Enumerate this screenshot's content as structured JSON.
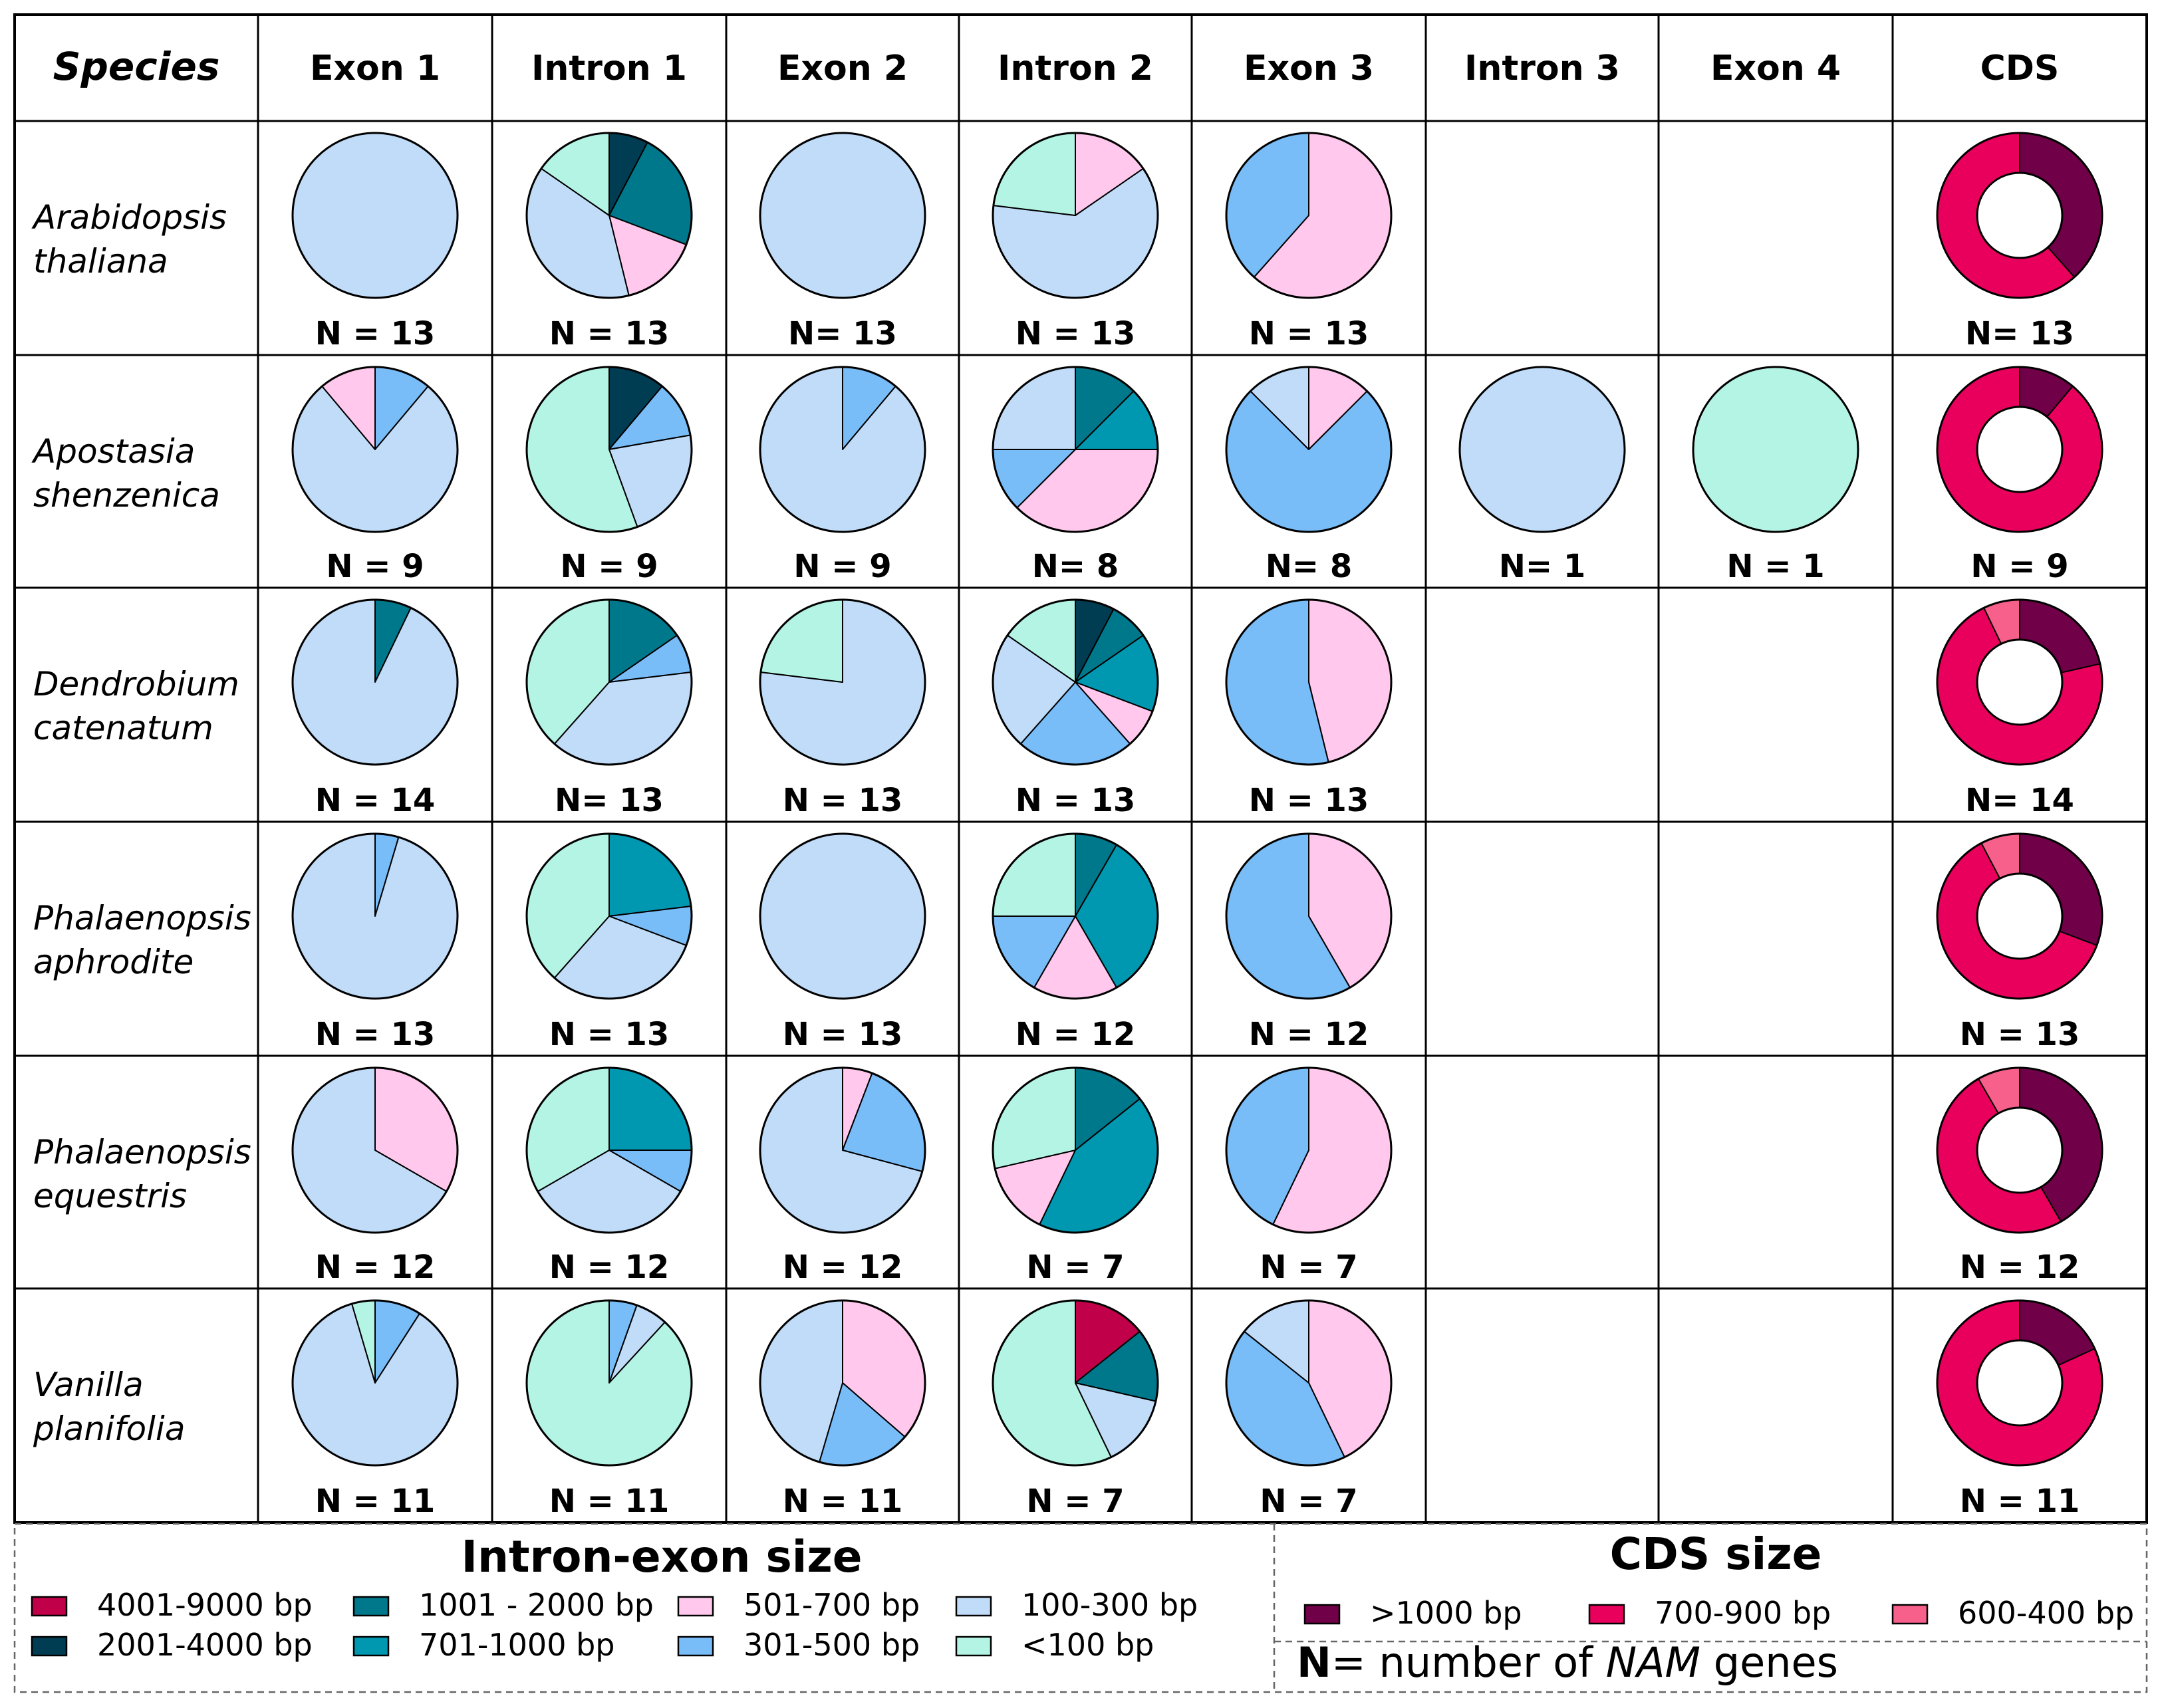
{
  "colors": {
    "4001-9000": "#c00048",
    "2001-4000": "#003c52",
    "1001-2000": "#00788c",
    "701-1000": "#0098b0",
    "501-700": "#ffc8ec",
    "301-500": "#78bcf8",
    "100-300": "#c0dcf8",
    "<100": "#b4f4e4",
    "cds_gt1000": "#700048",
    "cds_700_900": "#e8005c",
    "cds_600_400": "#f8608c"
  },
  "chart_data": {
    "type": "pie",
    "title": "",
    "header": {
      "species": "Species",
      "columns": [
        "Exon 1",
        "Intron 1",
        "Exon 2",
        "Intron 2",
        "Exon 3",
        "Intron 3",
        "Exon 4",
        "CDS"
      ]
    },
    "rows": [
      {
        "species": [
          "Arabidopsis",
          "thaliana"
        ],
        "cells": [
          {
            "n": "N = 13",
            "slices": [
              {
                "c": "100-300",
                "v": 13
              }
            ]
          },
          {
            "n": "N = 13",
            "slices": [
              {
                "c": "2001-4000",
                "v": 1
              },
              {
                "c": "1001-2000",
                "v": 3
              },
              {
                "c": "501-700",
                "v": 2
              },
              {
                "c": "100-300",
                "v": 5
              },
              {
                "c": "<100",
                "v": 2
              }
            ]
          },
          {
            "n": "N= 13",
            "slices": [
              {
                "c": "100-300",
                "v": 13
              }
            ]
          },
          {
            "n": "N = 13",
            "slices": [
              {
                "c": "501-700",
                "v": 2
              },
              {
                "c": "100-300",
                "v": 8
              },
              {
                "c": "<100",
                "v": 3
              }
            ]
          },
          {
            "n": "N = 13",
            "slices": [
              {
                "c": "501-700",
                "v": 8
              },
              {
                "c": "301-500",
                "v": 5
              }
            ]
          },
          null,
          null,
          {
            "n": "N= 13",
            "cds": true,
            "slices": [
              {
                "c": "cds_gt1000",
                "v": 5
              },
              {
                "c": "cds_700_900",
                "v": 8
              }
            ]
          }
        ]
      },
      {
        "species": [
          "Apostasia",
          "shenzenica"
        ],
        "cells": [
          {
            "n": "N = 9",
            "slices": [
              {
                "c": "301-500",
                "v": 1
              },
              {
                "c": "100-300",
                "v": 7
              },
              {
                "c": "501-700",
                "v": 1
              }
            ]
          },
          {
            "n": "N = 9",
            "slices": [
              {
                "c": "2001-4000",
                "v": 1
              },
              {
                "c": "301-500",
                "v": 1
              },
              {
                "c": "100-300",
                "v": 2
              },
              {
                "c": "<100",
                "v": 5
              }
            ]
          },
          {
            "n": "N = 9",
            "slices": [
              {
                "c": "301-500",
                "v": 1
              },
              {
                "c": "100-300",
                "v": 8
              }
            ]
          },
          {
            "n": "N= 8",
            "slices": [
              {
                "c": "1001-2000",
                "v": 1
              },
              {
                "c": "701-1000",
                "v": 1
              },
              {
                "c": "501-700",
                "v": 3
              },
              {
                "c": "301-500",
                "v": 1
              },
              {
                "c": "100-300",
                "v": 2
              }
            ]
          },
          {
            "n": "N= 8",
            "slices": [
              {
                "c": "501-700",
                "v": 1
              },
              {
                "c": "301-500",
                "v": 6
              },
              {
                "c": "100-300",
                "v": 1
              }
            ]
          },
          {
            "n": "N= 1",
            "slices": [
              {
                "c": "100-300",
                "v": 1
              }
            ]
          },
          {
            "n": "N = 1",
            "slices": [
              {
                "c": "<100",
                "v": 1
              }
            ]
          },
          {
            "n": "N = 9",
            "cds": true,
            "slices": [
              {
                "c": "cds_gt1000",
                "v": 1
              },
              {
                "c": "cds_700_900",
                "v": 8
              }
            ]
          }
        ]
      },
      {
        "species": [
          "Dendrobium",
          "catenatum"
        ],
        "cells": [
          {
            "n": "N = 14",
            "slices": [
              {
                "c": "1001-2000",
                "v": 1
              },
              {
                "c": "100-300",
                "v": 13
              }
            ]
          },
          {
            "n": "N= 13",
            "slices": [
              {
                "c": "1001-2000",
                "v": 2
              },
              {
                "c": "301-500",
                "v": 1
              },
              {
                "c": "100-300",
                "v": 5
              },
              {
                "c": "<100",
                "v": 5
              }
            ]
          },
          {
            "n": "N = 13",
            "slices": [
              {
                "c": "100-300",
                "v": 10
              },
              {
                "c": "<100",
                "v": 3
              }
            ]
          },
          {
            "n": "N = 13",
            "slices": [
              {
                "c": "2001-4000",
                "v": 1
              },
              {
                "c": "1001-2000",
                "v": 1
              },
              {
                "c": "701-1000",
                "v": 2
              },
              {
                "c": "501-700",
                "v": 1
              },
              {
                "c": "301-500",
                "v": 3
              },
              {
                "c": "100-300",
                "v": 3
              },
              {
                "c": "<100",
                "v": 2
              }
            ]
          },
          {
            "n": "N = 13",
            "slices": [
              {
                "c": "501-700",
                "v": 6
              },
              {
                "c": "301-500",
                "v": 7
              }
            ]
          },
          null,
          null,
          {
            "n": "N= 14",
            "cds": true,
            "slices": [
              {
                "c": "cds_gt1000",
                "v": 3
              },
              {
                "c": "cds_700_900",
                "v": 10
              },
              {
                "c": "cds_600_400",
                "v": 1
              }
            ]
          }
        ]
      },
      {
        "species": [
          "Phalaenopsis",
          "aphrodite"
        ],
        "cells": [
          {
            "n": "N = 13",
            "slices": [
              {
                "c": "301-500",
                "v": 0.6
              },
              {
                "c": "100-300",
                "v": 12.4
              }
            ]
          },
          {
            "n": "N = 13",
            "slices": [
              {
                "c": "701-1000",
                "v": 3
              },
              {
                "c": "301-500",
                "v": 1
              },
              {
                "c": "100-300",
                "v": 4
              },
              {
                "c": "<100",
                "v": 5
              }
            ]
          },
          {
            "n": "N = 13",
            "slices": [
              {
                "c": "100-300",
                "v": 13
              }
            ]
          },
          {
            "n": "N = 12",
            "slices": [
              {
                "c": "1001-2000",
                "v": 1
              },
              {
                "c": "701-1000",
                "v": 4
              },
              {
                "c": "501-700",
                "v": 2
              },
              {
                "c": "301-500",
                "v": 2
              },
              {
                "c": "<100",
                "v": 3
              }
            ]
          },
          {
            "n": "N = 12",
            "slices": [
              {
                "c": "501-700",
                "v": 5
              },
              {
                "c": "301-500",
                "v": 7
              }
            ]
          },
          null,
          null,
          {
            "n": "N = 13",
            "cds": true,
            "slices": [
              {
                "c": "cds_gt1000",
                "v": 4
              },
              {
                "c": "cds_700_900",
                "v": 8
              },
              {
                "c": "cds_600_400",
                "v": 1
              }
            ]
          }
        ]
      },
      {
        "species": [
          "Phalaenopsis",
          "equestris"
        ],
        "cells": [
          {
            "n": "N = 12",
            "slices": [
              {
                "c": "501-700",
                "v": 4
              },
              {
                "c": "100-300",
                "v": 8
              }
            ]
          },
          {
            "n": "N = 12",
            "slices": [
              {
                "c": "701-1000",
                "v": 3
              },
              {
                "c": "301-500",
                "v": 1
              },
              {
                "c": "100-300",
                "v": 4
              },
              {
                "c": "<100",
                "v": 4
              }
            ]
          },
          {
            "n": "N = 12",
            "slices": [
              {
                "c": "501-700",
                "v": 0.7
              },
              {
                "c": "301-500",
                "v": 2.8
              },
              {
                "c": "100-300",
                "v": 8.5
              }
            ]
          },
          {
            "n": "N = 7",
            "slices": [
              {
                "c": "1001-2000",
                "v": 1
              },
              {
                "c": "701-1000",
                "v": 3
              },
              {
                "c": "501-700",
                "v": 1
              },
              {
                "c": "<100",
                "v": 2
              }
            ]
          },
          {
            "n": "N = 7",
            "slices": [
              {
                "c": "501-700",
                "v": 4
              },
              {
                "c": "301-500",
                "v": 3
              }
            ]
          },
          null,
          null,
          {
            "n": "N = 12",
            "cds": true,
            "slices": [
              {
                "c": "cds_gt1000",
                "v": 5
              },
              {
                "c": "cds_700_900",
                "v": 6
              },
              {
                "c": "cds_600_400",
                "v": 1
              }
            ]
          }
        ]
      },
      {
        "species": [
          "Vanilla",
          "planifolia"
        ],
        "cells": [
          {
            "n": "N = 11",
            "slices": [
              {
                "c": "301-500",
                "v": 1
              },
              {
                "c": "100-300",
                "v": 9.5
              },
              {
                "c": "<100",
                "v": 0.5
              }
            ]
          },
          {
            "n": "N = 11",
            "slices": [
              {
                "c": "301-500",
                "v": 0.6
              },
              {
                "c": "100-300",
                "v": 0.7
              },
              {
                "c": "<100",
                "v": 9.7
              }
            ]
          },
          {
            "n": "N = 11",
            "slices": [
              {
                "c": "501-700",
                "v": 4
              },
              {
                "c": "301-500",
                "v": 2
              },
              {
                "c": "100-300",
                "v": 5
              }
            ]
          },
          {
            "n": "N = 7",
            "slices": [
              {
                "c": "4001-9000",
                "v": 1
              },
              {
                "c": "1001-2000",
                "v": 1
              },
              {
                "c": "100-300",
                "v": 1
              },
              {
                "c": "<100",
                "v": 4
              }
            ]
          },
          {
            "n": "N = 7",
            "slices": [
              {
                "c": "501-700",
                "v": 3
              },
              {
                "c": "301-500",
                "v": 3
              },
              {
                "c": "100-300",
                "v": 1
              }
            ]
          },
          null,
          null,
          {
            "n": "N = 11",
            "cds": true,
            "slices": [
              {
                "c": "cds_gt1000",
                "v": 2
              },
              {
                "c": "cds_700_900",
                "v": 9
              }
            ]
          }
        ]
      }
    ],
    "legend": {
      "intron_title": "Intron-exon size",
      "cds_title": "CDS size",
      "intron_items": [
        {
          "key": "4001-9000",
          "label": "4001-9000 bp"
        },
        {
          "key": "2001-4000",
          "label": "2001-4000 bp"
        },
        {
          "key": "1001-2000",
          "label": "1001 - 2000 bp"
        },
        {
          "key": "701-1000",
          "label": "701-1000 bp"
        },
        {
          "key": "501-700",
          "label": "501-700 bp"
        },
        {
          "key": "301-500",
          "label": "301-500 bp"
        },
        {
          "key": "100-300",
          "label": "100-300 bp"
        },
        {
          "key": "<100",
          "label": "<100 bp"
        }
      ],
      "cds_items": [
        {
          "key": "cds_gt1000",
          "label": ">1000 bp"
        },
        {
          "key": "cds_700_900",
          "label": "700-900 bp"
        },
        {
          "key": "cds_600_400",
          "label": "600-400 bp"
        }
      ],
      "n_note": {
        "bold": "N",
        "pre": "= number of ",
        "ital": "NAM",
        "post": " genes"
      }
    }
  }
}
